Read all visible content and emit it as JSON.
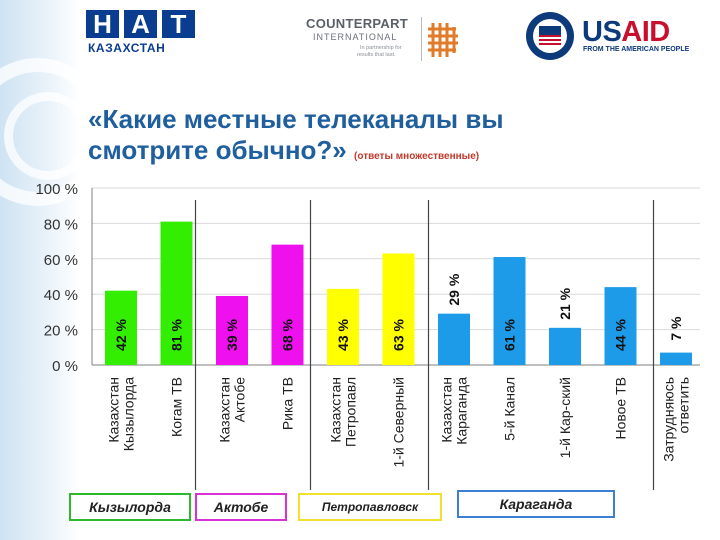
{
  "logos": {
    "nat": {
      "letters": [
        "Н",
        "А",
        "Т"
      ],
      "subtitle": "КАЗАХСТАН"
    },
    "counterpart": {
      "name": "COUNTERPART",
      "sub": "INTERNATIONAL",
      "tagline1": "In partnership for",
      "tagline2": "results that last."
    },
    "usaid": {
      "u": "US",
      "aid": "AID",
      "tagline": "FROM THE AMERICAN PEOPLE",
      "seal_icon": "usaid-seal"
    }
  },
  "title": {
    "line1": "«Какие местные телеканалы вы",
    "line2": "смотрите обычно?»",
    "note": "(ответы множественные)"
  },
  "colors": {
    "title": "#1f5f9e",
    "green": "#33ee00",
    "magenta": "#ee11ee",
    "yellow": "#ffff00",
    "blue": "#1e9be8"
  },
  "chart_data": {
    "type": "bar",
    "ylim": [
      0,
      100
    ],
    "yticks": [
      "0 %",
      "20 %",
      "40 %",
      "60 %",
      "80 %",
      "100 %"
    ],
    "categories": [
      "Казахстан Кызылорда",
      "Когам ТВ",
      "Казахстан Актобе",
      "Рика ТВ",
      "Казахстан Петропавл",
      "1-й Северный",
      "Казахстан Караганда",
      "5-й Канал",
      "1-й Кар-ский",
      "Новое ТВ",
      "Затрудняюсь ответить"
    ],
    "category_lines": [
      [
        "Казахстан",
        "Кызылорда"
      ],
      [
        "Когам ТВ"
      ],
      [
        "Казахстан",
        "Актобе"
      ],
      [
        "Рика ТВ"
      ],
      [
        "Казахстан",
        "Петропавл"
      ],
      [
        "1-й Северный"
      ],
      [
        "Казахстан",
        "Караганда"
      ],
      [
        "5-й Канал"
      ],
      [
        "1-й Кар-ский"
      ],
      [
        "Новое ТВ"
      ],
      [
        "Затрудняюсь",
        "ответить"
      ]
    ],
    "values": [
      42,
      81,
      39,
      68,
      43,
      63,
      29,
      61,
      21,
      44,
      7
    ],
    "labels": [
      "42 %",
      "81 %",
      "39 %",
      "68 %",
      "43 %",
      "63 %",
      "29 %",
      "61 %",
      "21 %",
      "44 %",
      "7 %"
    ],
    "groups": [
      {
        "name": "Кызылорда",
        "color": "#33ee00",
        "border": "#2eb82e"
      },
      {
        "name": "Актобе",
        "color": "#ee11ee",
        "border": "#d633d6"
      },
      {
        "name": "Петропавловск",
        "color": "#ffff00",
        "border": "#f0e030"
      },
      {
        "name": "Караганда",
        "color": "#1e9be8",
        "border": "#3a7fd0"
      },
      {
        "name": "",
        "color": "#1e9be8",
        "border": ""
      }
    ],
    "bar_group": [
      0,
      0,
      1,
      1,
      2,
      2,
      3,
      3,
      3,
      3,
      4
    ]
  }
}
